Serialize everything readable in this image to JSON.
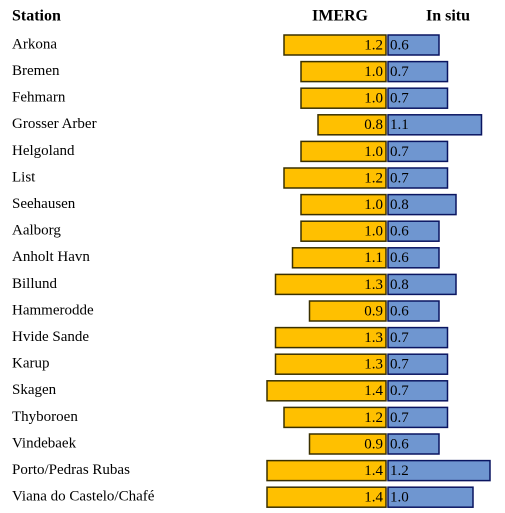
{
  "chart_data": {
    "type": "bar",
    "xlabel": "Station",
    "categories": [
      "Arkona",
      "Bremen",
      "Fehmarn",
      "Grosser Arber",
      "Helgoland",
      "List",
      "Seehausen",
      "Aalborg",
      "Anholt Havn",
      "Billund",
      "Hammerodde",
      "Hvide Sande",
      "Karup",
      "Skagen",
      "Thyboroen",
      "Vindebaek",
      "Porto/Pedras Rubas",
      "Viana do Castelo/Chafé"
    ],
    "series": [
      {
        "name": "IMERG",
        "color": "#ffc000",
        "values": [
          1.2,
          1.0,
          1.0,
          0.8,
          1.0,
          1.2,
          1.0,
          1.0,
          1.1,
          1.3,
          0.9,
          1.3,
          1.3,
          1.4,
          1.2,
          0.9,
          1.4,
          1.4
        ],
        "value_labels": [
          "1.2",
          "1.0",
          "1.0",
          "0.8",
          "1.0",
          "1.2",
          "1.0",
          "1.0",
          "1.1",
          "1.3",
          "0.9",
          "1.3",
          "1.3",
          "1.4",
          "1.2",
          "0.9",
          "1.4",
          "1.4"
        ]
      },
      {
        "name": "In situ",
        "color": "#6f96d0",
        "values": [
          0.6,
          0.7,
          0.7,
          1.1,
          0.7,
          0.7,
          0.8,
          0.6,
          0.6,
          0.8,
          0.6,
          0.7,
          0.7,
          0.7,
          0.7,
          0.6,
          1.2,
          1.0
        ],
        "value_labels": [
          "0.6",
          "0.7",
          "0.7",
          "1.1",
          "0.7",
          "0.7",
          "0.8",
          "0.6",
          "0.6",
          "0.8",
          "0.6",
          "0.7",
          "0.7",
          "0.7",
          "0.7",
          "0.6",
          "1.2",
          "1.0"
        ]
      }
    ]
  }
}
